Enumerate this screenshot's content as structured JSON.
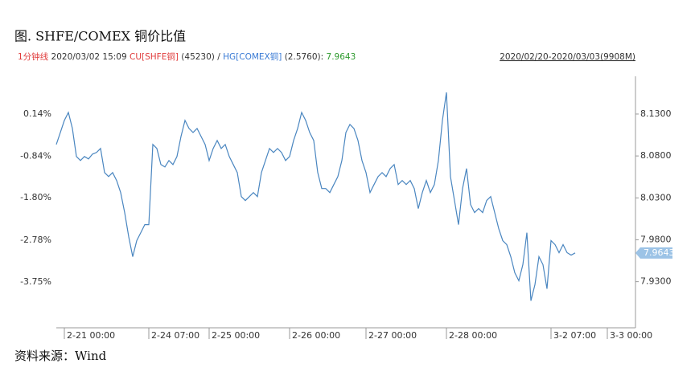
{
  "chart_data": {
    "type": "line",
    "title": "图. SHFE/COMEX 铜价比值",
    "info": {
      "interval": "1分钟线",
      "timestamp": "2020/03/02 15:09",
      "numerator": "CU[SHFE铜]",
      "numerator_price": "(45230)",
      "separator": "/",
      "denominator": "HG[COMEX铜]",
      "denominator_price": "(2.5760)",
      "colon": ":",
      "range": "2020/02/20-2020/03/03(9908M)"
    },
    "source": "资料来源：Wind",
    "xlim": [
      0,
      144
    ],
    "xticks": [
      {
        "value": 2,
        "label": "2-21 00:00"
      },
      {
        "value": 23,
        "label": "2-24 07:00"
      },
      {
        "value": 38,
        "label": "2-25 00:00"
      },
      {
        "value": 58,
        "label": "2-26 00:00"
      },
      {
        "value": 77,
        "label": "2-27 00:00"
      },
      {
        "value": 97,
        "label": "2-28 00:00"
      },
      {
        "value": 123,
        "label": "3-2 07:00"
      },
      {
        "value": 137,
        "label": "3-3 00:00"
      }
    ],
    "ylim": [
      -4.81,
      1.01
    ],
    "yticks": [
      {
        "value": 0.14,
        "label": "0.14%"
      },
      {
        "value": -0.84,
        "label": "-0.84%"
      },
      {
        "value": -1.8,
        "label": "-1.80%"
      },
      {
        "value": -2.78,
        "label": "-2.78%"
      },
      {
        "value": -3.75,
        "label": "-3.75%"
      }
    ],
    "y2lim": [
      7.875,
      8.175
    ],
    "y2ticks": [
      {
        "value": 8.13,
        "label": "8.1300"
      },
      {
        "value": 8.08,
        "label": "8.0800"
      },
      {
        "value": 8.03,
        "label": "8.0300"
      },
      {
        "value": 7.98,
        "label": "7.9800"
      },
      {
        "value": 7.93,
        "label": "7.9300"
      }
    ],
    "grid": false,
    "series": [
      {
        "name": "HG[COMEX铜]",
        "color": "#4a86c0",
        "axis": "y2",
        "values": [
          8.0937,
          8.108,
          8.1224,
          8.1319,
          8.1128,
          8.0793,
          8.0746,
          8.0793,
          8.0765,
          8.0822,
          8.0841,
          8.0889,
          8.0602,
          8.0554,
          8.0602,
          8.0507,
          8.0363,
          8.0124,
          7.9837,
          7.9598,
          7.979,
          7.9885,
          7.9981,
          7.9981,
          8.0937,
          8.0889,
          8.0698,
          8.0669,
          8.0746,
          8.0698,
          8.0793,
          8.1032,
          8.1224,
          8.1128,
          8.108,
          8.1128,
          8.1032,
          8.0937,
          8.0746,
          8.0889,
          8.0985,
          8.0889,
          8.0937,
          8.0793,
          8.0698,
          8.0602,
          8.0315,
          8.0268,
          8.0315,
          8.0363,
          8.0315,
          8.0602,
          8.0746,
          8.0889,
          8.0841,
          8.0889,
          8.0841,
          8.0746,
          8.0793,
          8.0985,
          8.1128,
          8.1319,
          8.1224,
          8.108,
          8.0985,
          8.0602,
          8.0411,
          8.0411,
          8.0363,
          8.0459,
          8.0554,
          8.0746,
          8.108,
          8.1176,
          8.1128,
          8.0985,
          8.0746,
          8.0602,
          8.0363,
          8.0459,
          8.0554,
          8.0602,
          8.0554,
          8.065,
          8.0698,
          8.0459,
          8.0507,
          8.0459,
          8.0507,
          8.0411,
          8.0172,
          8.0363,
          8.0507,
          8.0363,
          8.0459,
          8.0746,
          8.1224,
          8.1558,
          8.0554,
          8.0268,
          7.9981,
          8.0411,
          8.065,
          8.022,
          8.0124,
          8.0172,
          8.0124,
          8.0268,
          8.0315,
          8.0124,
          7.9933,
          7.979,
          7.9742,
          7.9598,
          7.9407,
          7.9312,
          7.9503,
          7.9885,
          7.9073,
          7.9264,
          7.9598,
          7.9503,
          7.9216,
          7.979,
          7.9742,
          7.9646,
          7.9742,
          7.9646,
          7.9617,
          7.9643
        ]
      }
    ]
  }
}
